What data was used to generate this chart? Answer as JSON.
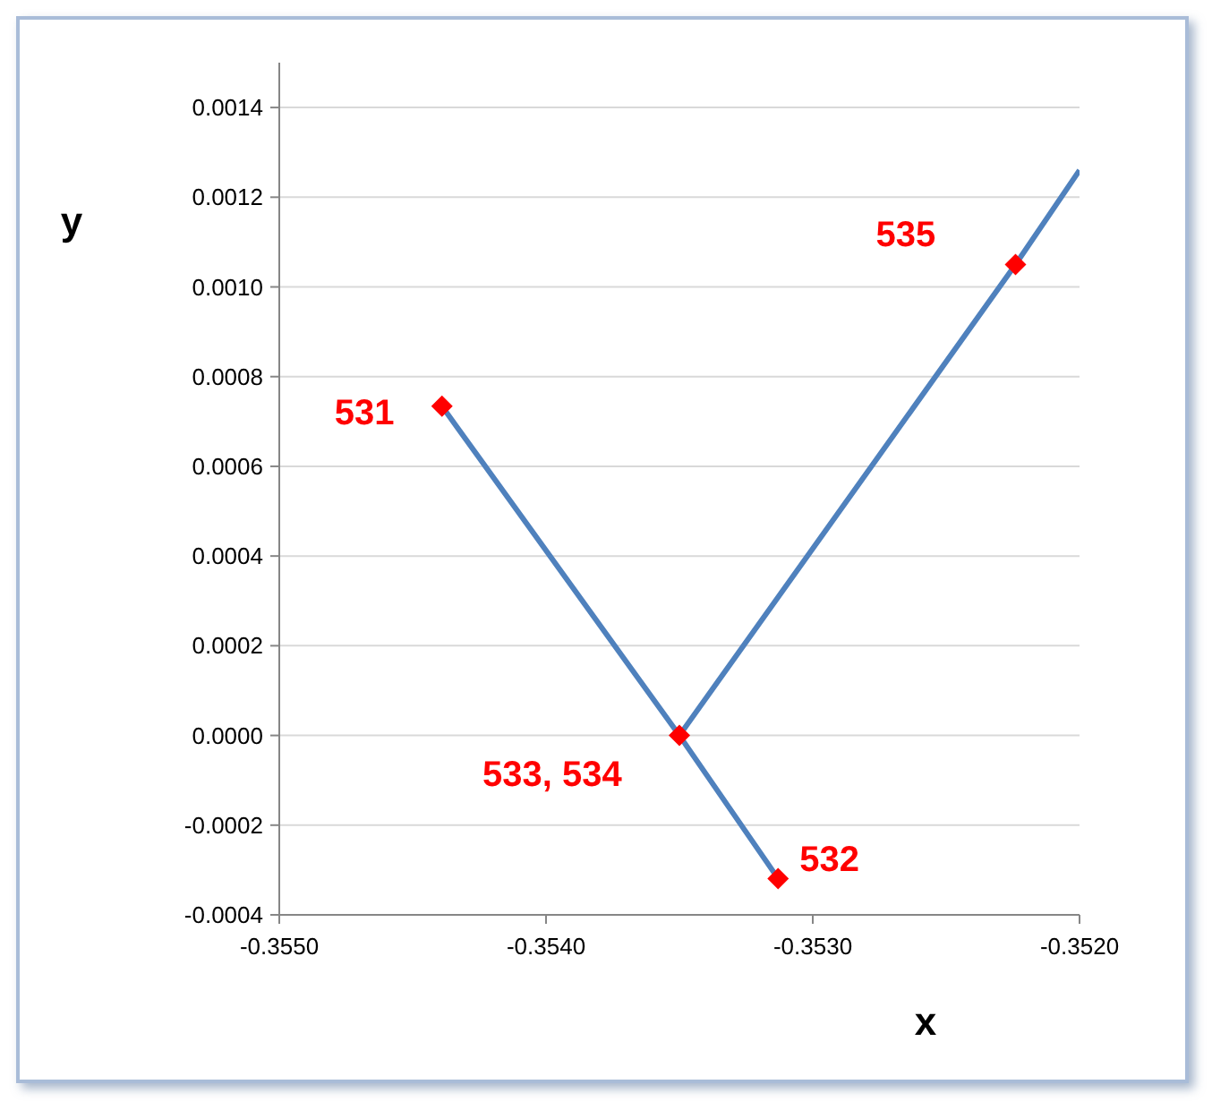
{
  "chart_data": {
    "type": "line",
    "xlabel": "x",
    "ylabel": "y",
    "xlim": [
      -0.355,
      -0.352
    ],
    "xticks": [
      {
        "value": -0.355,
        "label": "-0.3550"
      },
      {
        "value": -0.354,
        "label": "-0.3540"
      },
      {
        "value": -0.353,
        "label": "-0.3530"
      },
      {
        "value": -0.352,
        "label": "-0.3520"
      }
    ],
    "ylim": [
      -0.0004,
      0.0015
    ],
    "yticks": [
      {
        "value": -0.0004,
        "label": "-0.0004"
      },
      {
        "value": -0.0002,
        "label": "-0.0002"
      },
      {
        "value": 0,
        "label": "0.0000"
      },
      {
        "value": 0.0002,
        "label": "0.0002"
      },
      {
        "value": 0.0004,
        "label": "0.0004"
      },
      {
        "value": 0.0006,
        "label": "0.0006"
      },
      {
        "value": 0.0008,
        "label": "0.0008"
      },
      {
        "value": 0.001,
        "label": "0.0010"
      },
      {
        "value": 0.0012,
        "label": "0.0012"
      },
      {
        "value": 0.0014,
        "label": "0.0014"
      }
    ],
    "grid": "y",
    "series": [
      {
        "color": "#4f81bd",
        "marker": "none",
        "x": [
          -0.35439,
          -0.3535,
          -0.35313
        ],
        "values": [
          0.000734,
          0,
          -0.000319
        ]
      },
      {
        "color": "#4f81bd",
        "marker": "none",
        "x": [
          -0.3535,
          -0.35224,
          -0.352
        ],
        "values": [
          0,
          0.00105,
          0.00126
        ]
      },
      {
        "type": "scatter",
        "color": "#ff0000",
        "marker": "diamond",
        "x": [
          -0.35439,
          -0.35313,
          -0.3535,
          -0.35224
        ],
        "values": [
          0.000734,
          -0.000319,
          0,
          0.00105
        ]
      }
    ],
    "annotations": [
      {
        "text": "531",
        "x": -0.35439,
        "y": 0.000734
      },
      {
        "text": "532",
        "x": -0.35313,
        "y": -0.000319
      },
      {
        "text": "533, 534",
        "x": -0.3535,
        "y": 0
      },
      {
        "text": "535",
        "x": -0.35224,
        "y": 0.00105
      }
    ]
  }
}
